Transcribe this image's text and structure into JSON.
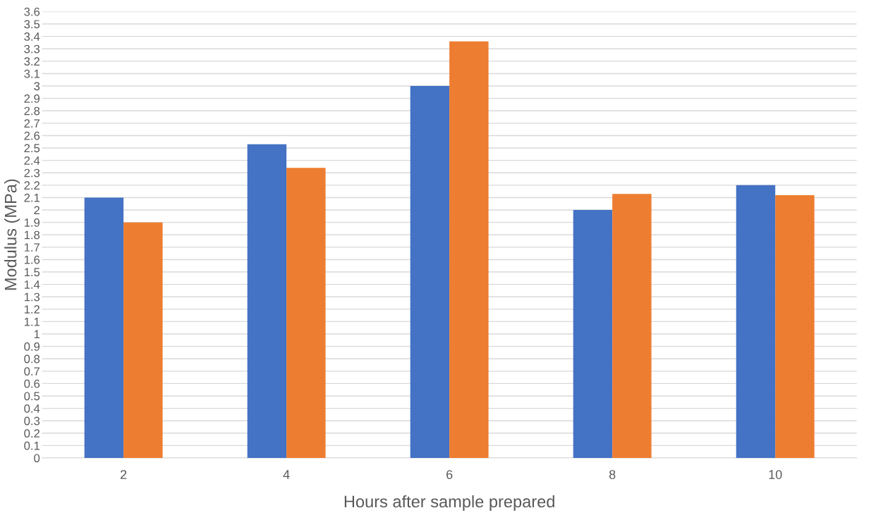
{
  "chart_data": {
    "type": "bar",
    "xlabel": "Hours after sample prepared",
    "ylabel": "Modulus (MPa)",
    "categories": [
      "2",
      "4",
      "6",
      "8",
      "10"
    ],
    "series": [
      {
        "color": "#4472c4",
        "values": [
          2.1,
          2.53,
          3.0,
          2.0,
          2.2
        ]
      },
      {
        "color": "#ed7d31",
        "values": [
          1.9,
          2.34,
          3.36,
          2.13,
          2.12
        ]
      }
    ],
    "ylim": [
      0,
      3.6
    ],
    "yticks": [
      0,
      0.1,
      0.2,
      0.3,
      0.4,
      0.5,
      0.6,
      0.7,
      0.8,
      0.9,
      1,
      1.1,
      1.2,
      1.3,
      1.4,
      1.5,
      1.6,
      1.7,
      1.8,
      1.9,
      2,
      2.1,
      2.2,
      2.3,
      2.4,
      2.5,
      2.6,
      2.7,
      2.8,
      2.9,
      3,
      3.1,
      3.2,
      3.3,
      3.4,
      3.5,
      3.6
    ],
    "grid": "y",
    "legend": false
  }
}
